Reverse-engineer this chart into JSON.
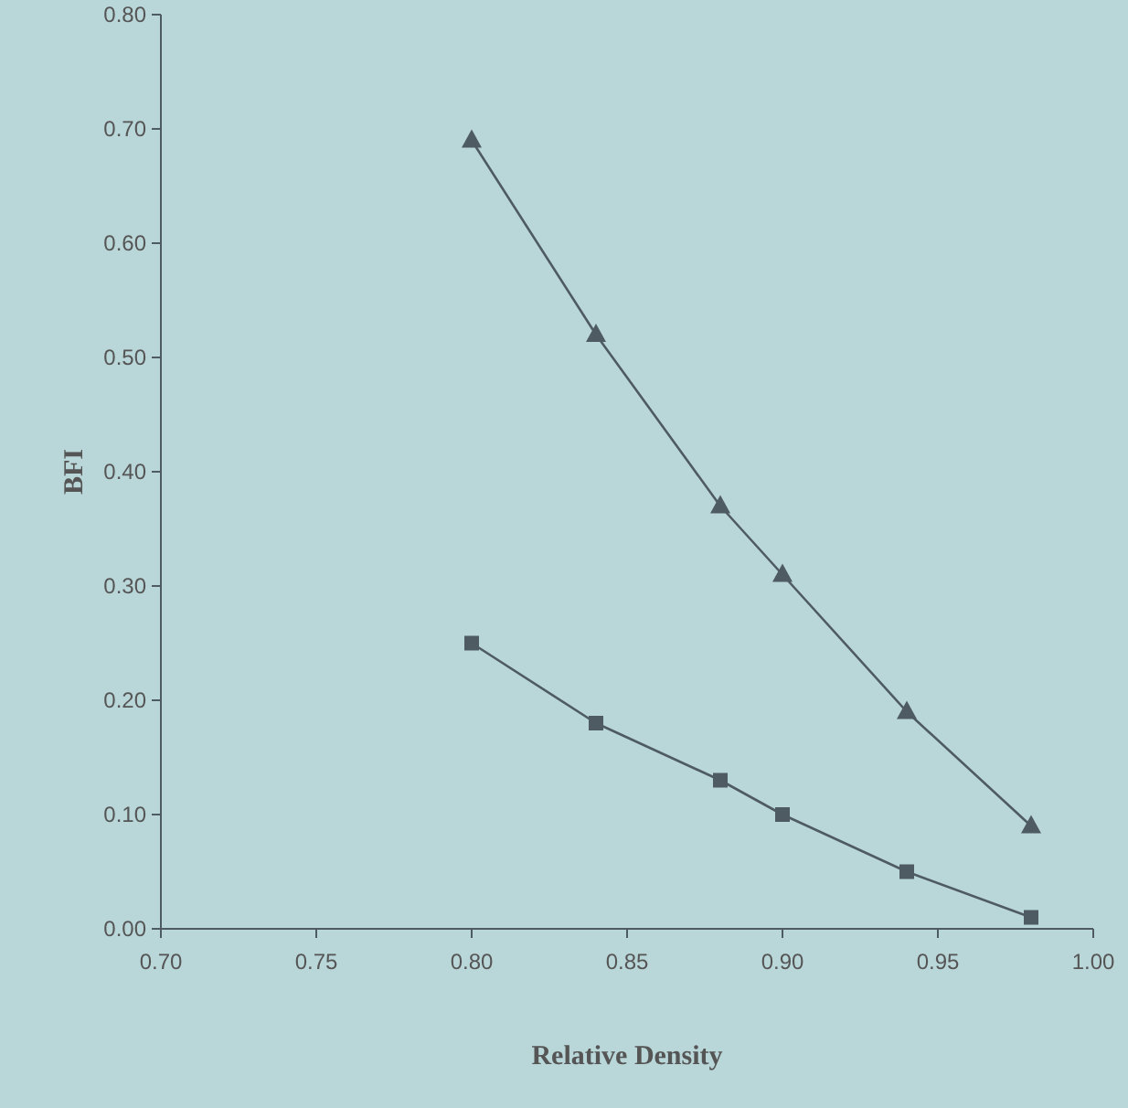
{
  "chart_data": {
    "type": "line",
    "xlabel": "Relative Density",
    "ylabel": "BFI",
    "xlim": [
      0.7,
      1.0
    ],
    "xticks": [
      {
        "value": 0.7,
        "label": "0.70"
      },
      {
        "value": 0.75,
        "label": "0.75"
      },
      {
        "value": 0.8,
        "label": "0.80"
      },
      {
        "value": 0.85,
        "label": "0.85"
      },
      {
        "value": 0.9,
        "label": "0.90"
      },
      {
        "value": 0.95,
        "label": "0.95"
      },
      {
        "value": 1.0,
        "label": "1.00"
      }
    ],
    "ylim": [
      0,
      0.8
    ],
    "yticks": [
      {
        "value": 0,
        "label": "0.00"
      },
      {
        "value": 0.1,
        "label": "0.10"
      },
      {
        "value": 0.2,
        "label": "0.20"
      },
      {
        "value": 0.3,
        "label": "0.30"
      },
      {
        "value": 0.4,
        "label": "0.40"
      },
      {
        "value": 0.5,
        "label": "0.50"
      },
      {
        "value": 0.6,
        "label": "0.60"
      },
      {
        "value": 0.7,
        "label": "0.70"
      },
      {
        "value": 0.8,
        "label": "0.80"
      }
    ],
    "x": [
      0.8,
      0.84,
      0.88,
      0.9,
      0.94,
      0.98
    ],
    "grid": false,
    "line_style": "solid",
    "series": [
      {
        "color": "#4f5b62",
        "marker": "triangle",
        "values": [
          0.69,
          0.52,
          0.37,
          0.31,
          0.19,
          0.09
        ]
      },
      {
        "color": "#4f5b62",
        "marker": "square",
        "values": [
          0.25,
          0.18,
          0.13,
          0.1,
          0.05,
          0.01
        ]
      }
    ]
  }
}
